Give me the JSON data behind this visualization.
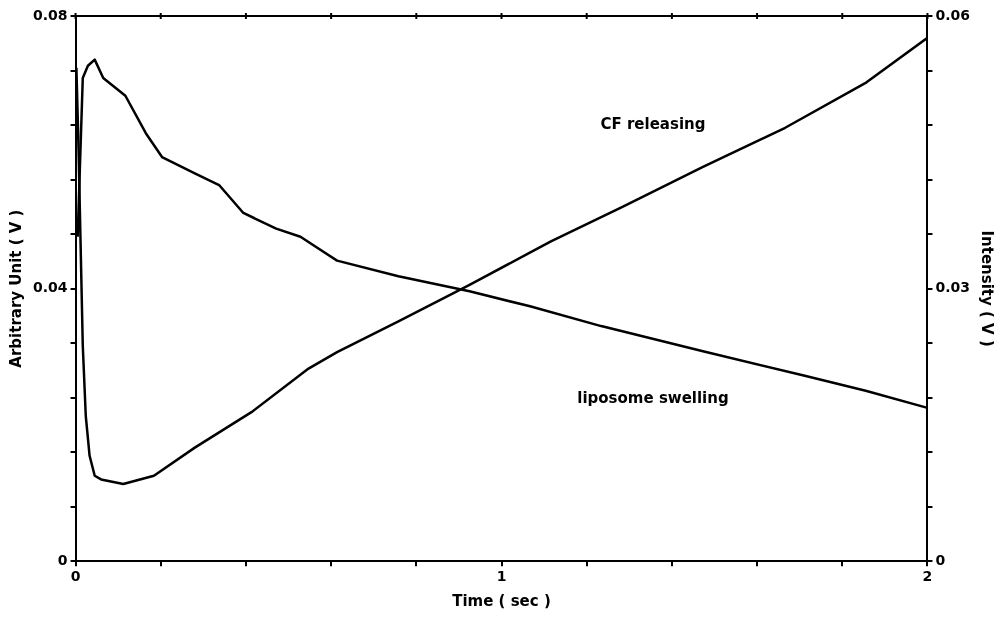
{
  "chart_data": {
    "type": "line",
    "xlabel": "Time ( sec )",
    "ylabel": "Arbitrary Unit ( V )",
    "y2label": "Intensity ( V )",
    "xlim": [
      0,
      2
    ],
    "xticks": [
      0,
      {
        "value": 0.2,
        "label": null
      },
      {
        "value": 0.4,
        "label": null
      },
      {
        "value": 0.6,
        "label": null
      },
      {
        "value": 0.8,
        "label": null
      },
      1,
      {
        "value": 1.2,
        "label": null
      },
      {
        "value": 1.4,
        "label": null
      },
      {
        "value": 1.6,
        "label": null
      },
      {
        "value": 1.8,
        "label": null
      },
      2
    ],
    "ylim": [
      0,
      0.08
    ],
    "yticks": [
      0,
      {
        "value": 0.008,
        "label": null
      },
      {
        "value": 0.016,
        "label": null
      },
      {
        "value": 0.024,
        "label": null
      },
      {
        "value": 0.032,
        "label": null
      },
      0.04,
      {
        "value": 0.048,
        "label": null
      },
      {
        "value": 0.056,
        "label": null
      },
      {
        "value": 0.064,
        "label": null
      },
      {
        "value": 0.072,
        "label": null
      },
      0.08
    ],
    "y2lim": [
      0,
      0.06
    ],
    "y2ticks": [
      0,
      {
        "value": 0.006,
        "label": null
      },
      {
        "value": 0.012,
        "label": null
      },
      {
        "value": 0.018,
        "label": null
      },
      {
        "value": 0.024,
        "label": null
      },
      0.03,
      {
        "value": 0.036,
        "label": null
      },
      {
        "value": 0.042,
        "label": null
      },
      {
        "value": 0.048,
        "label": null
      },
      {
        "value": 0.054,
        "label": null
      },
      0.06
    ],
    "grid": false,
    "legend": false,
    "marker": "none",
    "line_style": "solid",
    "series": [
      {
        "name": "liposome swelling",
        "color": "#000000",
        "axis": "y",
        "x": [
          0.005,
          0.017,
          0.029,
          0.045,
          0.065,
          0.117,
          0.165,
          0.203,
          0.28,
          0.337,
          0.394,
          0.471,
          0.528,
          0.614,
          0.758,
          0.925,
          1.067,
          1.234,
          1.473,
          1.712,
          1.855,
          2.0
        ],
        "values": [
          0.0476,
          0.0709,
          0.0727,
          0.0736,
          0.0709,
          0.0683,
          0.0628,
          0.0593,
          0.0569,
          0.0552,
          0.0511,
          0.0488,
          0.0476,
          0.0441,
          0.0418,
          0.0396,
          0.0374,
          0.0345,
          0.0308,
          0.0272,
          0.025,
          0.0225
        ]
      },
      {
        "name": "CF releasing",
        "color": "#000000",
        "axis": "y2",
        "x": [
          0.002,
          0.007,
          0.012,
          0.017,
          0.024,
          0.033,
          0.045,
          0.06,
          0.112,
          0.184,
          0.28,
          0.413,
          0.547,
          0.614,
          0.758,
          0.925,
          1.116,
          1.284,
          1.473,
          1.666,
          1.857,
          2.0
        ],
        "values": [
          0.0543,
          0.0455,
          0.0346,
          0.0237,
          0.016,
          0.0116,
          0.0094,
          0.009,
          0.0085,
          0.0094,
          0.0125,
          0.0164,
          0.0212,
          0.023,
          0.0264,
          0.0304,
          0.0352,
          0.039,
          0.0434,
          0.0477,
          0.0527,
          0.0576
        ]
      }
    ]
  }
}
